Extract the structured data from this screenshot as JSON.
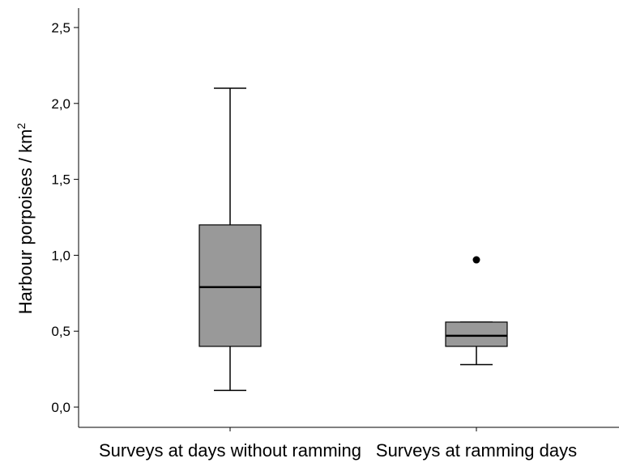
{
  "chart_data": {
    "type": "boxplot",
    "title": "",
    "xlabel": "",
    "ylabel": "Harbour porpoises / km",
    "ylabel_superscript": "2",
    "ylim": [
      0,
      2.5
    ],
    "y_ticks": [
      0.0,
      0.5,
      1.0,
      1.5,
      2.0,
      2.5
    ],
    "y_tick_labels": [
      "0,0",
      "0,5",
      "1,0",
      "1,5",
      "2,0",
      "2,5"
    ],
    "grid": false,
    "box_color": "#999999",
    "line_color": "#000000",
    "categories": [
      "Surveys at days without ramming",
      "Surveys at ramming days"
    ],
    "boxes": [
      {
        "category": "Surveys at days without ramming",
        "whisker_low": 0.11,
        "q1": 0.4,
        "median": 0.79,
        "q3": 1.2,
        "whisker_high": 2.1,
        "outliers": []
      },
      {
        "category": "Surveys at ramming days",
        "whisker_low": 0.28,
        "q1": 0.4,
        "median": 0.47,
        "q3": 0.56,
        "whisker_high": 0.56,
        "outliers": [
          0.97
        ]
      }
    ]
  }
}
